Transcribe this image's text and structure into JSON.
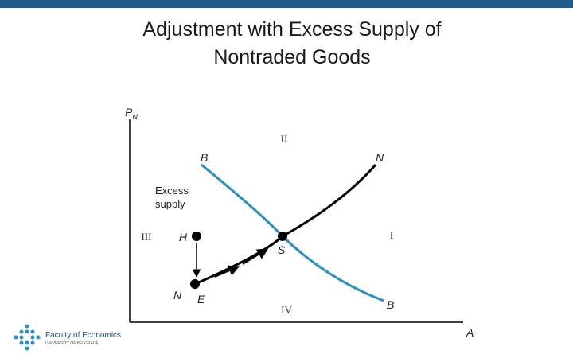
{
  "header": {
    "title_lines": [
      "Adjustment with Excess Supply of",
      "Nontraded Goods"
    ]
  },
  "diagram": {
    "y_axis_label": "P",
    "y_axis_subscript": "N",
    "x_axis_label": "A",
    "regions": {
      "I": "I",
      "II": "II",
      "III": "III",
      "IV": "IV"
    },
    "curve_b": {
      "label_top": "B",
      "label_bottom": "B"
    },
    "curve_n": {
      "label_top": "N",
      "label_bottom": "N"
    },
    "points": {
      "h": "H",
      "e": "E",
      "s": "S"
    },
    "annotation_lines": [
      "Excess",
      "supply"
    ]
  },
  "logo": {
    "name": "Faculty of Economics",
    "subtitle": "UNIVERSITY OF BELGRADE"
  }
}
